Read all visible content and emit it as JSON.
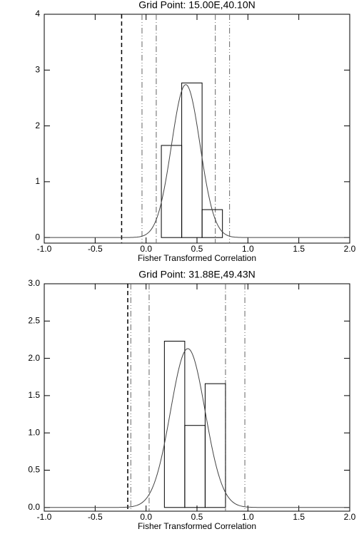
{
  "chart_data": [
    {
      "type": "histogram",
      "title": "Grid Point: 15.00E,40.10N",
      "x_label": "Fisher Transformed Correlation",
      "xlim": [
        -1,
        2
      ],
      "xticks": [
        {
          "value": -1,
          "label": "-1.0"
        },
        {
          "value": -0.5,
          "label": "-0.5"
        },
        {
          "value": 0,
          "label": "0.0"
        },
        {
          "value": 0.5,
          "label": "0.5"
        },
        {
          "value": 1,
          "label": "1.0"
        },
        {
          "value": 1.5,
          "label": "1.5"
        },
        {
          "value": 2,
          "label": "2.0"
        }
      ],
      "ylim": [
        -0.1,
        4
      ],
      "yticks": [
        0,
        1,
        2,
        3,
        4
      ],
      "bins": [
        0.15,
        0.35,
        0.55,
        0.75
      ],
      "counts": [
        1.65,
        2.77,
        0.5
      ],
      "curve": {
        "mean": 0.39,
        "sd": 0.14,
        "peak": 2.74
      },
      "lines": [
        {
          "x": -0.24,
          "style": "dashed"
        },
        {
          "x": -0.04,
          "style": "dash-dot-dot"
        },
        {
          "x": 0.82,
          "style": "dash-dot-dot"
        },
        {
          "x": 0.1,
          "style": "dash-dot"
        },
        {
          "x": 0.68,
          "style": "dash-dot"
        }
      ],
      "color": "#000000"
    },
    {
      "type": "histogram",
      "title": "Grid Point: 31.88E,49.43N",
      "x_label": "Fisher Transformed Correlation",
      "xlim": [
        -1,
        2
      ],
      "xticks": [
        {
          "value": -1,
          "label": "-1.0"
        },
        {
          "value": -0.5,
          "label": "-0.5"
        },
        {
          "value": 0,
          "label": "0.0"
        },
        {
          "value": 0.5,
          "label": "0.5"
        },
        {
          "value": 1,
          "label": "1.0"
        },
        {
          "value": 1.5,
          "label": "1.5"
        },
        {
          "value": 2,
          "label": "2.0"
        }
      ],
      "ylim": [
        -0.05,
        3
      ],
      "yticks": [
        {
          "value": 0,
          "label": "0.0"
        },
        {
          "value": 0.5,
          "label": "0.5"
        },
        {
          "value": 1,
          "label": "1.0"
        },
        {
          "value": 1.5,
          "label": "1.5"
        },
        {
          "value": 2,
          "label": "2.0"
        },
        {
          "value": 2.5,
          "label": "2.5"
        },
        {
          "value": 3,
          "label": "3.0"
        }
      ],
      "bins": [
        0.18,
        0.38,
        0.58,
        0.78
      ],
      "counts": [
        2.23,
        1.1,
        1.66
      ],
      "curve": {
        "mean": 0.41,
        "sd": 0.17,
        "peak": 2.13
      },
      "lines": [
        {
          "x": -0.18,
          "style": "dashed"
        },
        {
          "x": -0.15,
          "style": "dash-dot-dot"
        },
        {
          "x": 0.97,
          "style": "dash-dot-dot"
        },
        {
          "x": 0.03,
          "style": "dash-dot"
        },
        {
          "x": 0.78,
          "style": "dash-dot"
        }
      ],
      "color": "#000000"
    }
  ]
}
